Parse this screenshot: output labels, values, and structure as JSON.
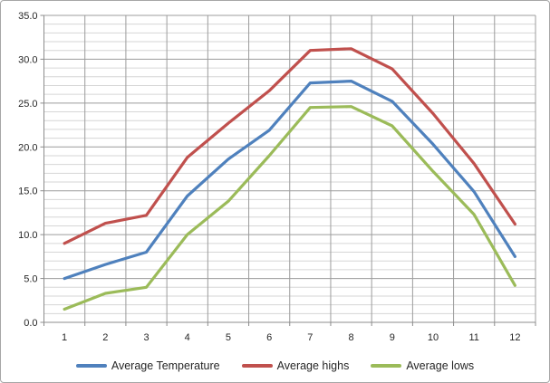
{
  "chart_data": {
    "type": "line",
    "title": "",
    "xlabel": "",
    "ylabel": "",
    "categories": [
      1,
      2,
      3,
      4,
      5,
      6,
      7,
      8,
      9,
      10,
      11,
      12
    ],
    "x_tick_labels": [
      "1",
      "2",
      "3",
      "4",
      "5",
      "6",
      "7",
      "8",
      "9",
      "10",
      "11",
      "12"
    ],
    "series": [
      {
        "name": "Average Temperature",
        "color": "#4F81BD",
        "values": [
          5.0,
          6.6,
          8.0,
          14.4,
          18.6,
          21.9,
          27.3,
          27.5,
          25.2,
          20.3,
          14.9,
          7.5
        ]
      },
      {
        "name": "Average highs",
        "color": "#C0504D",
        "values": [
          9.0,
          11.3,
          12.2,
          18.8,
          22.7,
          26.4,
          31.0,
          31.2,
          28.9,
          23.8,
          18.1,
          11.2
        ]
      },
      {
        "name": "Average lows",
        "color": "#9BBB59",
        "values": [
          1.5,
          3.3,
          4.0,
          10.0,
          13.8,
          19.0,
          24.5,
          24.6,
          22.4,
          17.2,
          12.3,
          4.2
        ]
      }
    ],
    "ylim": [
      0,
      35
    ],
    "y_major_step": 5,
    "y_minor_step": 1,
    "y_tick_labels": [
      "0.0",
      "5.0",
      "10.0",
      "15.0",
      "20.0",
      "25.0",
      "30.0",
      "35.0"
    ],
    "grid": {
      "major_on": true,
      "minor_on": true,
      "vertical_on": true
    },
    "legend_position": "bottom",
    "colors": {
      "minor_gridline": "#d6d6d6",
      "major_gridline": "#9c9c9c",
      "vertical_gridline": "#9c9c9c",
      "axis_line": "#8c8c8c",
      "tick_text": "#262626",
      "background": "#ffffff",
      "frame_border": "#a6a6a6"
    }
  }
}
